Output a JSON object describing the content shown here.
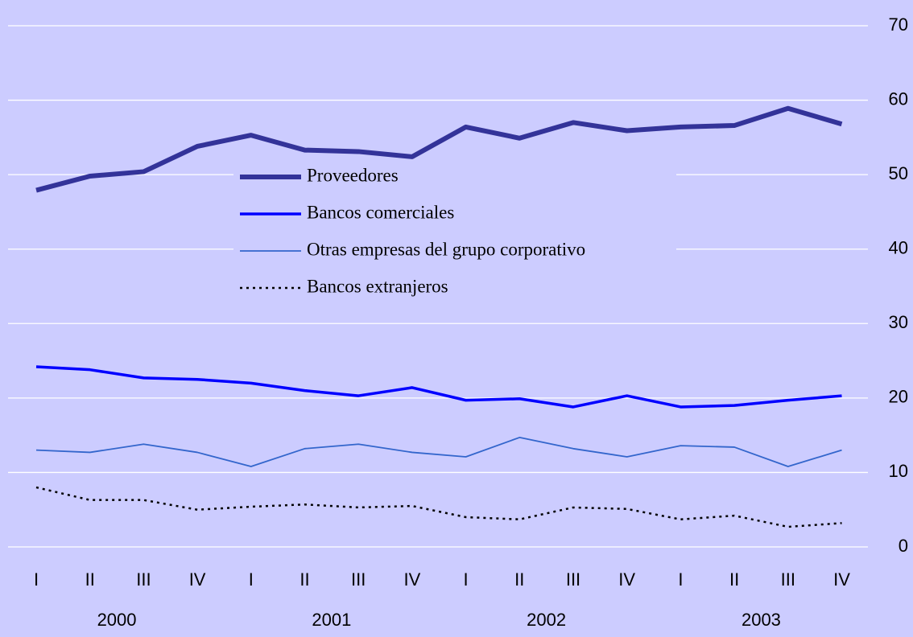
{
  "chart_data": {
    "type": "line",
    "categories": [
      "I",
      "II",
      "III",
      "IV",
      "I",
      "II",
      "III",
      "IV",
      "I",
      "II",
      "III",
      "IV",
      "I",
      "II",
      "III",
      "IV"
    ],
    "year_groups": [
      "2000",
      "2001",
      "2002",
      "2003"
    ],
    "series": [
      {
        "name": "Proveedores",
        "color": "#333399",
        "width": 6,
        "dashed": false,
        "values": [
          47.9,
          49.8,
          50.4,
          53.8,
          55.3,
          53.3,
          53.1,
          52.4,
          56.4,
          54.9,
          57.0,
          55.9,
          56.4,
          56.6,
          58.9,
          56.8
        ]
      },
      {
        "name": "Bancos comerciales",
        "color": "#0000ff",
        "width": 3.5,
        "dashed": false,
        "values": [
          24.2,
          23.8,
          22.7,
          22.5,
          22.0,
          21.0,
          20.3,
          21.4,
          19.7,
          19.9,
          18.8,
          20.3,
          18.8,
          19.0,
          19.7,
          20.3
        ]
      },
      {
        "name": "Otras empresas del grupo corporativo",
        "color": "#3366cc",
        "width": 1.8,
        "dashed": false,
        "values": [
          13.0,
          12.7,
          13.8,
          12.7,
          10.8,
          13.2,
          13.8,
          12.7,
          12.1,
          14.7,
          13.2,
          12.1,
          13.6,
          13.4,
          10.8,
          13.0
        ]
      },
      {
        "name": "Bancos extranjeros",
        "color": "#000000",
        "width": 2.5,
        "dashed": true,
        "values": [
          8.0,
          6.3,
          6.3,
          5.0,
          5.4,
          5.7,
          5.3,
          5.5,
          4.0,
          3.7,
          5.3,
          5.1,
          3.7,
          4.2,
          2.7,
          3.2
        ]
      }
    ],
    "ylim": [
      0,
      70
    ],
    "yticks": [
      0,
      10,
      20,
      30,
      40,
      50,
      60,
      70
    ],
    "grid": true,
    "y_axis_side": "right",
    "background": "#ccccff"
  }
}
